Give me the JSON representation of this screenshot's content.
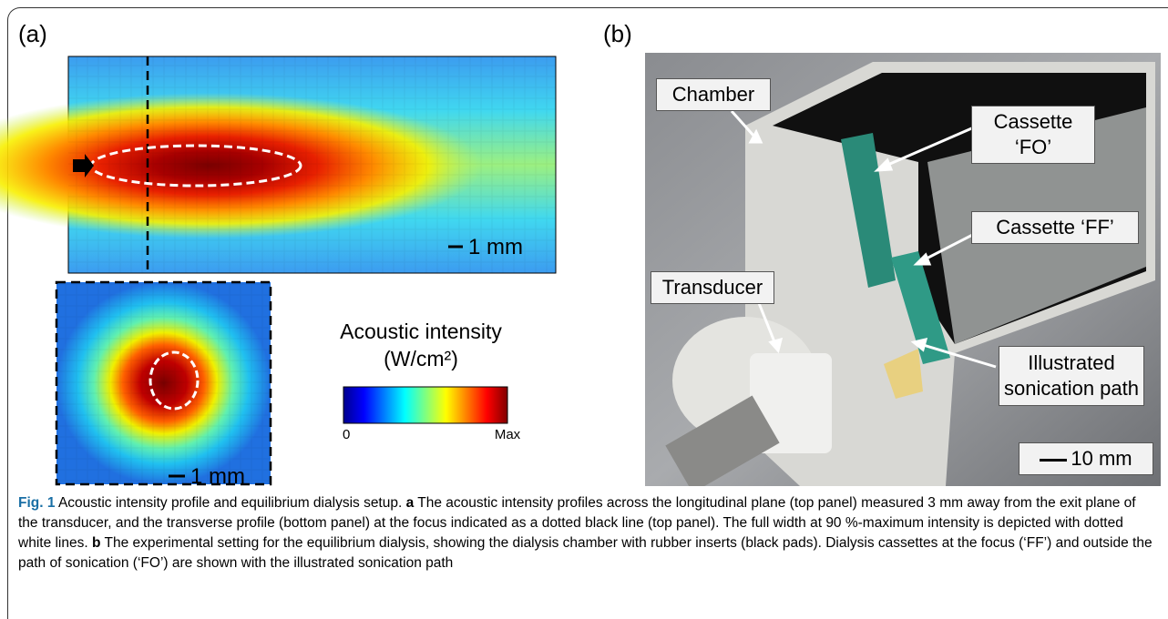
{
  "panel_a": {
    "label": "(a)",
    "scale_top": "1 mm",
    "scale_bottom": "1 mm",
    "colorbar": {
      "title": "Acoustic intensity",
      "unit": "(W/cm²)",
      "min_label": "0",
      "max_label": "Max"
    }
  },
  "panel_b": {
    "label": "(b)",
    "callouts": [
      "Chamber",
      "Cassette ‘FO’",
      "Cassette ‘FF’",
      "Transducer",
      "Illustrated",
      "sonication path"
    ],
    "scale": "10 mm"
  },
  "caption": {
    "label": "Fig. 1",
    "title": "Acoustic intensity profile and equilibrium dialysis setup.",
    "parts": [
      {
        "label": "a",
        "text": "The acoustic intensity profiles across the longitudinal plane (top panel) measured 3 mm away from the exit plane of the transducer, and the transverse profile (bottom panel) at the focus indicated as a dotted black line (top panel). The full width at 90 %-maximum intensity is depicted with dotted white lines."
      },
      {
        "label": "b",
        "text": "The experimental setting for the equilibrium dialysis, showing the dialysis chamber with rubber inserts (black pads). Dialysis cassettes at the focus (‘FF’) and outside the path of sonication (‘FO’) are shown with the illustrated sonication path"
      }
    ]
  }
}
